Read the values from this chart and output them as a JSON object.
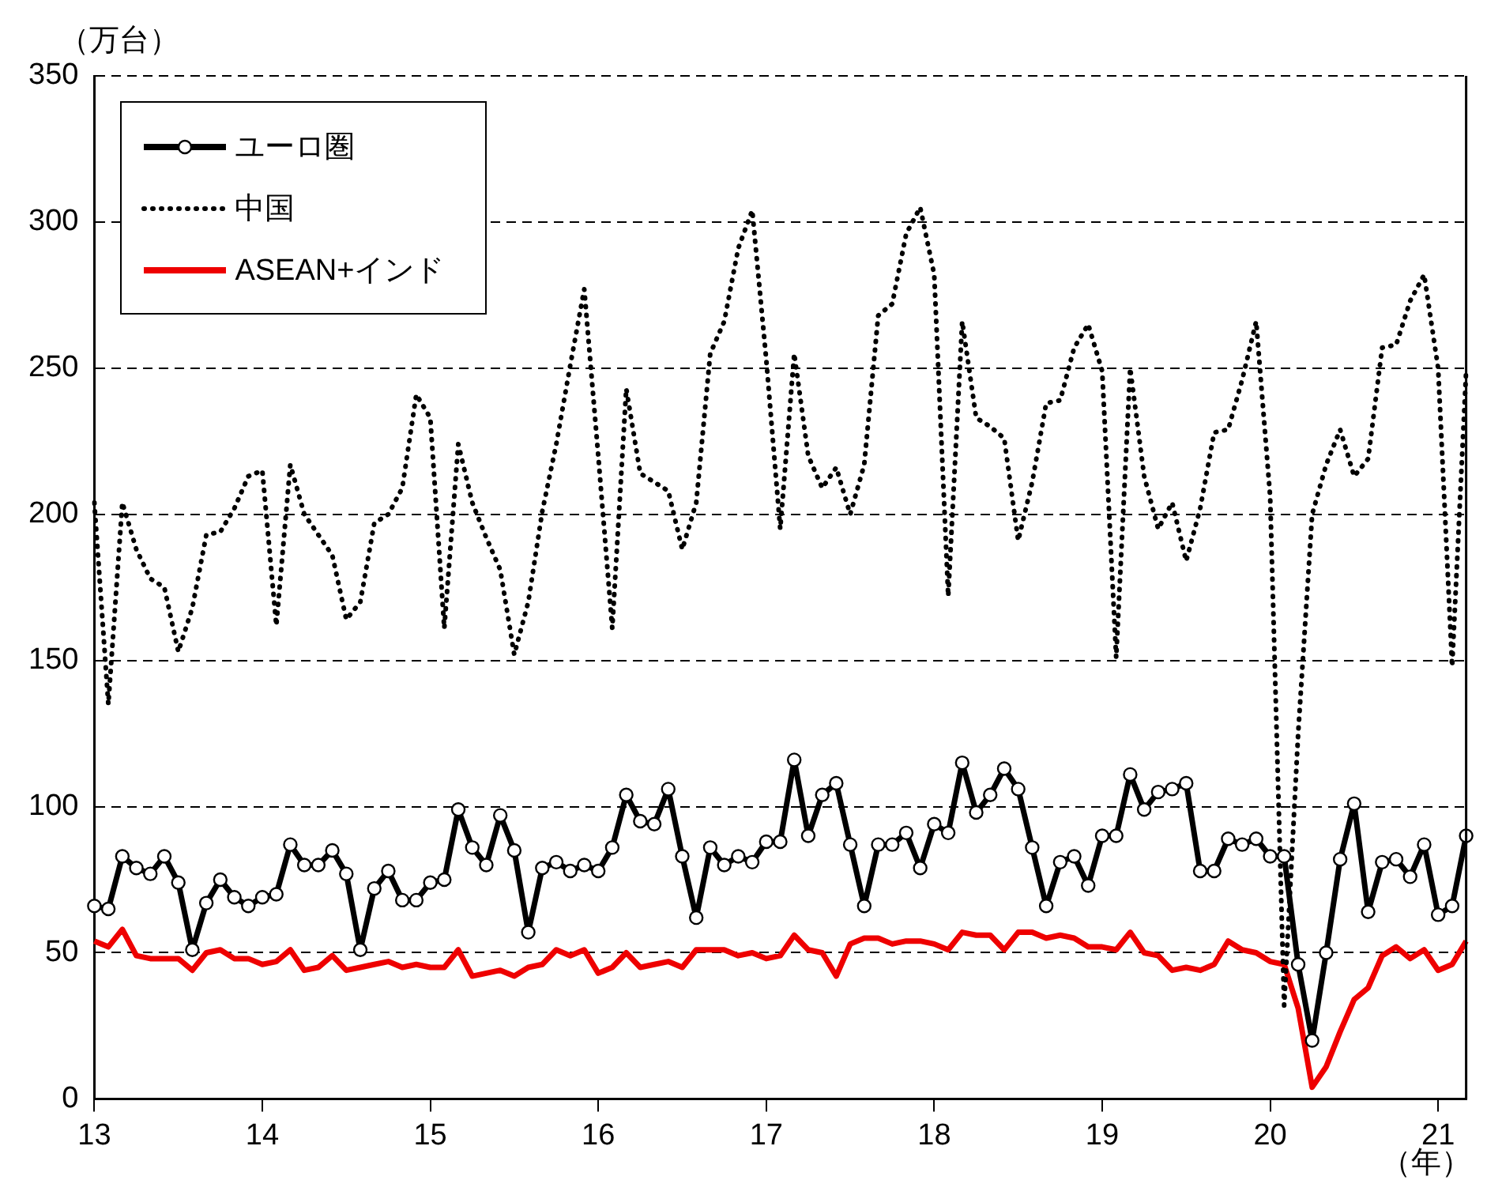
{
  "chart_data": {
    "type": "line",
    "ylabel": "（万台）",
    "xlabel": "（年）",
    "categories": [
      "13",
      null,
      null,
      null,
      null,
      null,
      null,
      null,
      null,
      null,
      null,
      null,
      "14",
      null,
      null,
      null,
      null,
      null,
      null,
      null,
      null,
      null,
      null,
      null,
      "15",
      null,
      null,
      null,
      null,
      null,
      null,
      null,
      null,
      null,
      null,
      null,
      "16",
      null,
      null,
      null,
      null,
      null,
      null,
      null,
      null,
      null,
      null,
      null,
      "17",
      null,
      null,
      null,
      null,
      null,
      null,
      null,
      null,
      null,
      null,
      null,
      "18",
      null,
      null,
      null,
      null,
      null,
      null,
      null,
      null,
      null,
      null,
      null,
      "19",
      null,
      null,
      null,
      null,
      null,
      null,
      null,
      null,
      null,
      null,
      null,
      "20",
      null,
      null,
      null,
      null,
      null,
      null,
      null,
      null,
      null,
      null,
      null,
      "21",
      null,
      null
    ],
    "series": [
      {
        "name": "ユーロ圏",
        "color": "#000000",
        "marker": "circle",
        "line_style": "solid",
        "values": [
          66,
          65,
          83,
          79,
          77,
          83,
          74,
          51,
          67,
          75,
          69,
          66,
          69,
          70,
          87,
          80,
          80,
          85,
          77,
          51,
          72,
          78,
          68,
          68,
          74,
          75,
          99,
          86,
          80,
          97,
          85,
          57,
          79,
          81,
          78,
          80,
          78,
          86,
          104,
          95,
          94,
          106,
          83,
          62,
          86,
          80,
          83,
          81,
          88,
          88,
          116,
          90,
          104,
          108,
          87,
          66,
          87,
          87,
          91,
          79,
          94,
          91,
          115,
          98,
          104,
          113,
          106,
          86,
          66,
          81,
          83,
          73,
          90,
          90,
          111,
          99,
          105,
          106,
          108,
          78,
          78,
          89,
          87,
          89,
          83,
          83,
          46,
          20,
          50,
          82,
          101,
          64,
          81,
          82,
          76,
          87,
          63,
          66,
          90
        ]
      },
      {
        "name": "中国",
        "color": "#000000",
        "marker": "none",
        "line_style": "dotted",
        "values": [
          204,
          135,
          204,
          188,
          178,
          175,
          153,
          168,
          193,
          194,
          202,
          213,
          215,
          162,
          217,
          200,
          193,
          186,
          164,
          170,
          197,
          200,
          209,
          241,
          233,
          161,
          224,
          204,
          192,
          181,
          152,
          170,
          201,
          224,
          251,
          277,
          220,
          161,
          243,
          214,
          211,
          208,
          188,
          204,
          255,
          266,
          291,
          304,
          253,
          195,
          255,
          220,
          209,
          216,
          200,
          217,
          268,
          272,
          296,
          305,
          282,
          172,
          266,
          233,
          230,
          226,
          191,
          211,
          238,
          239,
          257,
          265,
          249,
          151,
          250,
          213,
          195,
          204,
          184,
          202,
          228,
          229,
          246,
          266,
          206,
          32,
          125,
          200,
          217,
          229,
          213,
          219,
          257,
          258,
          273,
          282,
          250,
          148,
          249
        ]
      },
      {
        "name": "ASEAN+インド",
        "color": "#ee0000",
        "marker": "none",
        "line_style": "solid",
        "values": [
          54,
          52,
          58,
          49,
          48,
          48,
          48,
          44,
          50,
          51,
          48,
          48,
          46,
          47,
          51,
          44,
          45,
          49,
          44,
          45,
          46,
          47,
          45,
          46,
          45,
          45,
          51,
          42,
          43,
          44,
          42,
          45,
          46,
          51,
          49,
          51,
          43,
          45,
          50,
          45,
          46,
          47,
          45,
          51,
          51,
          51,
          49,
          50,
          48,
          49,
          56,
          51,
          50,
          42,
          53,
          55,
          55,
          53,
          54,
          54,
          53,
          51,
          57,
          56,
          56,
          51,
          57,
          57,
          55,
          56,
          55,
          52,
          52,
          51,
          57,
          50,
          49,
          44,
          45,
          44,
          46,
          54,
          51,
          50,
          47,
          46,
          31,
          4,
          11,
          23,
          34,
          38,
          49,
          52,
          48,
          51,
          44,
          46,
          54
        ]
      }
    ],
    "ylim": [
      0,
      350
    ],
    "yticks": [
      0,
      50,
      100,
      150,
      200,
      250,
      300,
      350
    ],
    "grid": "y",
    "legend": "top left"
  }
}
